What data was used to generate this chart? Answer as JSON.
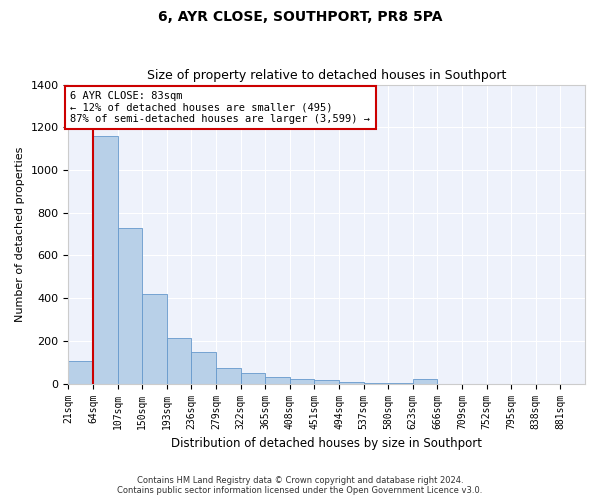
{
  "title": "6, AYR CLOSE, SOUTHPORT, PR8 5PA",
  "subtitle": "Size of property relative to detached houses in Southport",
  "xlabel": "Distribution of detached houses by size in Southport",
  "ylabel": "Number of detached properties",
  "footer_line1": "Contains HM Land Registry data © Crown copyright and database right 2024.",
  "footer_line2": "Contains public sector information licensed under the Open Government Licence v3.0.",
  "bar_labels": [
    "21sqm",
    "64sqm",
    "107sqm",
    "150sqm",
    "193sqm",
    "236sqm",
    "279sqm",
    "322sqm",
    "365sqm",
    "408sqm",
    "451sqm",
    "494sqm",
    "537sqm",
    "580sqm",
    "623sqm",
    "666sqm",
    "709sqm",
    "752sqm",
    "795sqm",
    "838sqm",
    "881sqm"
  ],
  "bar_heights": [
    105,
    1160,
    730,
    420,
    215,
    150,
    72,
    50,
    30,
    20,
    15,
    10,
    5,
    5,
    20,
    0,
    0,
    0,
    0,
    0
  ],
  "bar_color": "#b8d0e8",
  "bar_edge_color": "#6699cc",
  "vline_color": "#cc0000",
  "vline_x": 1.0,
  "annotation_line1": "6 AYR CLOSE: 83sqm",
  "annotation_line2": "← 12% of detached houses are smaller (495)",
  "annotation_line3": "87% of semi-detached houses are larger (3,599) →",
  "annotation_box_color": "#cc0000",
  "background_color": "#eef2fb",
  "ylim": [
    0,
    1400
  ],
  "yticks": [
    0,
    200,
    400,
    600,
    800,
    1000,
    1200,
    1400
  ],
  "title_fontsize": 10,
  "subtitle_fontsize": 9
}
